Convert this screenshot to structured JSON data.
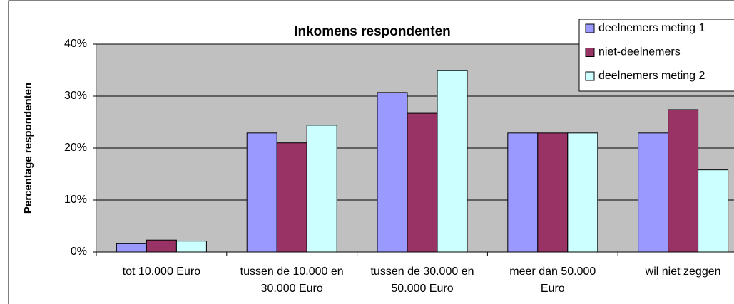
{
  "chart_data": {
    "type": "bar",
    "title": "Inkomens respondenten",
    "y_label": "Percentage respondenten",
    "categories": [
      "tot 10.000 Euro",
      "tussen de 10.000 en 30.000 Euro",
      "tussen de 30.000 en 50.000 Euro",
      "meer dan 50.000 Euro",
      "wil niet zeggen"
    ],
    "series": [
      {
        "name": "deelnemers meting 1",
        "color": "#9999ff",
        "values": [
          1.6,
          22.9,
          30.7,
          22.9,
          22.9
        ]
      },
      {
        "name": "niet-deelnemers",
        "color": "#993366",
        "values": [
          2.3,
          21.0,
          26.7,
          22.9,
          27.4
        ]
      },
      {
        "name": "deelnemers meting 2",
        "color": "#ccffff",
        "values": [
          2.1,
          24.4,
          34.9,
          22.9,
          15.8
        ]
      }
    ],
    "ylim": [
      0,
      40
    ],
    "yticks": [
      {
        "value": 0,
        "label": "0%"
      },
      {
        "value": 10,
        "label": "10%"
      },
      {
        "value": 20,
        "label": "20%"
      },
      {
        "value": 30,
        "label": "30%"
      },
      {
        "value": 40,
        "label": "40%"
      }
    ],
    "grid": true,
    "legend": "top-right",
    "plot_background": "#c0c0c0"
  }
}
